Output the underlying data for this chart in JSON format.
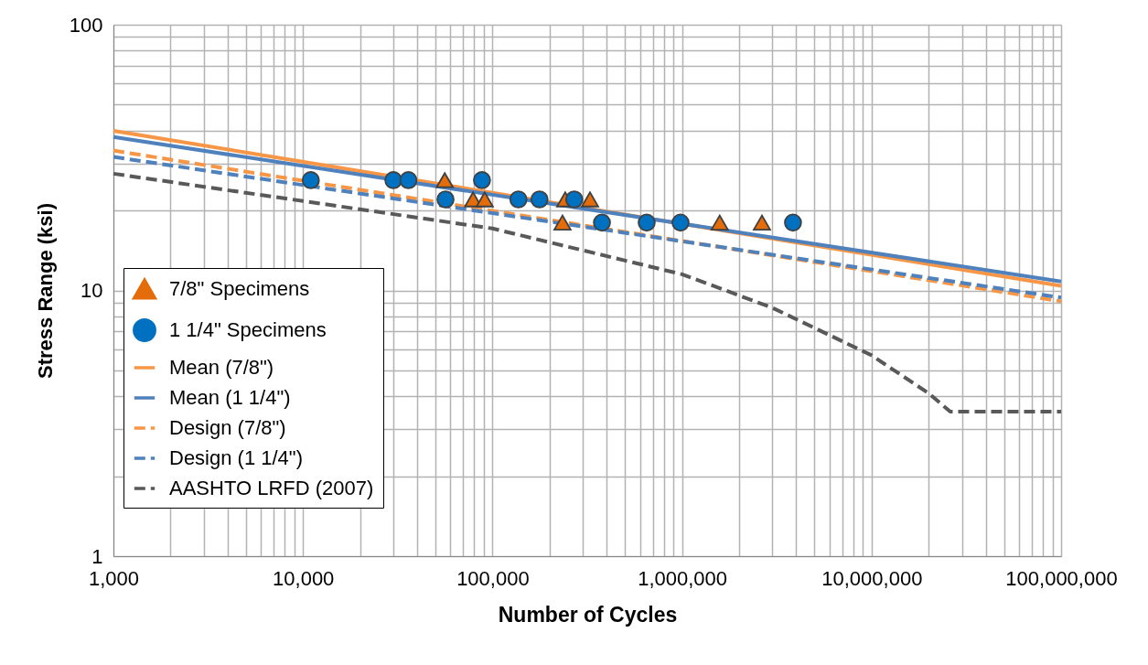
{
  "chart_data": {
    "type": "scatter",
    "xlabel": "Number of Cycles",
    "ylabel": "Stress Range (ksi)",
    "log": "xy",
    "grid": true,
    "legend": "bottom left",
    "xlim": [
      1000,
      100000000
    ],
    "ylim": [
      1,
      100
    ],
    "xticks": [
      {
        "value": 1000,
        "label": "1,000"
      },
      {
        "value": 2000,
        "label": null
      },
      {
        "value": 3000,
        "label": null
      },
      {
        "value": 4000,
        "label": null
      },
      {
        "value": 5000,
        "label": null
      },
      {
        "value": 6000,
        "label": null
      },
      {
        "value": 7000,
        "label": null
      },
      {
        "value": 8000,
        "label": null
      },
      {
        "value": 9000,
        "label": null
      },
      {
        "value": 10000,
        "label": "10,000"
      },
      {
        "value": 20000,
        "label": null
      },
      {
        "value": 30000,
        "label": null
      },
      {
        "value": 40000,
        "label": null
      },
      {
        "value": 50000,
        "label": null
      },
      {
        "value": 60000,
        "label": null
      },
      {
        "value": 70000,
        "label": null
      },
      {
        "value": 80000,
        "label": null
      },
      {
        "value": 90000,
        "label": null
      },
      {
        "value": 100000,
        "label": "100,000"
      },
      {
        "value": 200000,
        "label": null
      },
      {
        "value": 300000,
        "label": null
      },
      {
        "value": 400000,
        "label": null
      },
      {
        "value": 500000,
        "label": null
      },
      {
        "value": 600000,
        "label": null
      },
      {
        "value": 700000,
        "label": null
      },
      {
        "value": 800000,
        "label": null
      },
      {
        "value": 900000,
        "label": null
      },
      {
        "value": 1000000,
        "label": "1,000,000"
      },
      {
        "value": 2000000,
        "label": null
      },
      {
        "value": 3000000,
        "label": null
      },
      {
        "value": 4000000,
        "label": null
      },
      {
        "value": 5000000,
        "label": null
      },
      {
        "value": 6000000,
        "label": null
      },
      {
        "value": 7000000,
        "label": null
      },
      {
        "value": 8000000,
        "label": null
      },
      {
        "value": 9000000,
        "label": null
      },
      {
        "value": 10000000,
        "label": "10,000,000"
      },
      {
        "value": 20000000,
        "label": null
      },
      {
        "value": 30000000,
        "label": null
      },
      {
        "value": 40000000,
        "label": null
      },
      {
        "value": 50000000,
        "label": null
      },
      {
        "value": 60000000,
        "label": null
      },
      {
        "value": 70000000,
        "label": null
      },
      {
        "value": 80000000,
        "label": null
      },
      {
        "value": 90000000,
        "label": null
      },
      {
        "value": 100000000,
        "label": "100,000,000"
      }
    ],
    "yticks": [
      1,
      {
        "value": 2,
        "label": null
      },
      {
        "value": 3,
        "label": null
      },
      {
        "value": 4,
        "label": null
      },
      {
        "value": 5,
        "label": null
      },
      {
        "value": 6,
        "label": null
      },
      {
        "value": 7,
        "label": null
      },
      {
        "value": 8,
        "label": null
      },
      {
        "value": 9,
        "label": null
      },
      10,
      {
        "value": 20,
        "label": null
      },
      {
        "value": 30,
        "label": null
      },
      {
        "value": 40,
        "label": null
      },
      {
        "value": 50,
        "label": null
      },
      {
        "value": 60,
        "label": null
      },
      {
        "value": 70,
        "label": null
      },
      {
        "value": 80,
        "label": null
      },
      {
        "value": 90,
        "label": null
      },
      100
    ],
    "series": [
      {
        "name": "7/8\" Specimens",
        "marker": "triangle",
        "color": "#e46c0a",
        "x": [
          56000,
          79000,
          91000,
          234000,
          242000,
          327000,
          1580000,
          2640000
        ],
        "values": [
          26,
          22,
          22,
          18,
          22,
          22,
          18,
          18
        ]
      },
      {
        "name": "1 1/4\" Specimens",
        "marker": "circle",
        "color": "#0070c0",
        "x": [
          11000,
          30000,
          36000,
          56500,
          88000,
          137000,
          177000,
          270000,
          378000,
          651000,
          982000,
          3850000
        ],
        "values": [
          26,
          26,
          26,
          22,
          26,
          22,
          22,
          22,
          18,
          18,
          18,
          18
        ]
      },
      {
        "name": "Mean (7/8\")",
        "type": "line",
        "line_style": "solid",
        "color": "#f79646",
        "x": [
          1000,
          100000000
        ],
        "values": [
          39.9,
          10.4
        ]
      },
      {
        "name": "Mean (1 1/4\")",
        "type": "line",
        "line_style": "solid",
        "color": "#4f81bd",
        "x": [
          1000,
          100000000
        ],
        "values": [
          37.8,
          10.8
        ]
      },
      {
        "name": "Design (7/8\")",
        "type": "line",
        "line_style": "dashed",
        "color": "#f79646",
        "x": [
          1000,
          100000000
        ],
        "values": [
          33.6,
          9.1
        ]
      },
      {
        "name": "Design (1 1/4\")",
        "type": "line",
        "line_style": "dashed",
        "color": "#4f81bd",
        "x": [
          1000,
          100000000
        ],
        "values": [
          31.8,
          9.4
        ]
      },
      {
        "name": "AASHTO LRFD (2007)",
        "type": "line",
        "line_style": "dashed",
        "color": "#595959",
        "x": [
          1000,
          10000,
          100000,
          1000000,
          3000000,
          10000000,
          20000000,
          26000000,
          100000000
        ],
        "values": [
          27.5,
          21.7,
          17.1,
          11.5,
          8.6,
          5.7,
          4.1,
          3.5,
          3.5
        ]
      }
    ]
  }
}
